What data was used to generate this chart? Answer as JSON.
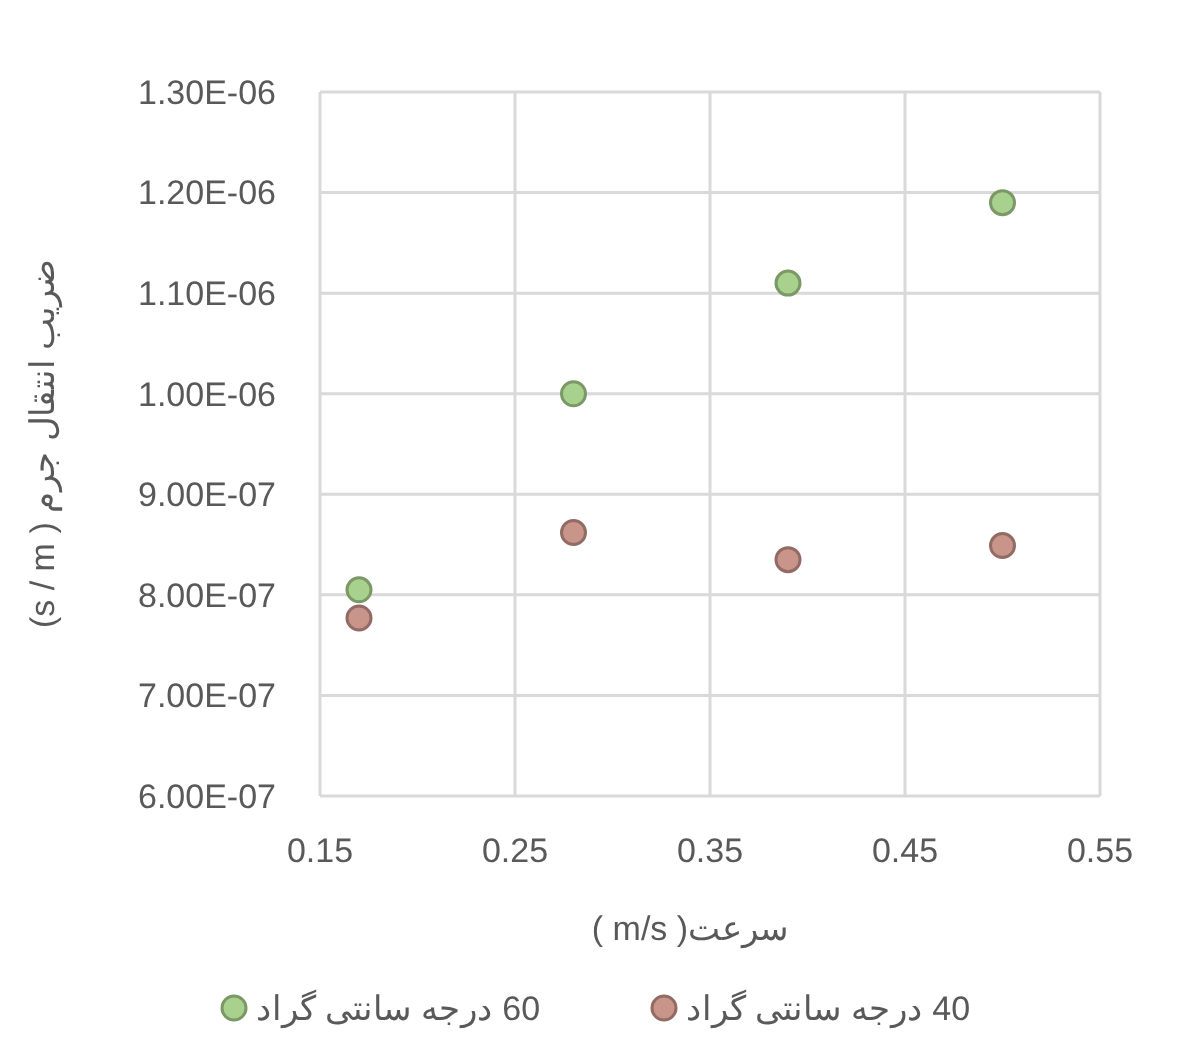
{
  "chart_data": {
    "type": "scatter",
    "xlabel": "سرعت( m/s )",
    "ylabel": "ضریب انتقال جرم ( s / m)",
    "x": [
      0.17,
      0.28,
      0.39,
      0.5
    ],
    "series": [
      {
        "name": "60 درجه سانتی گراد",
        "color": "#a9d18e",
        "values": [
          8.05e-07,
          1e-06,
          1.11e-06,
          1.19e-06
        ]
      },
      {
        "name": "40 درجه سانتی گراد",
        "color": "#c9948a",
        "values": [
          7.77e-07,
          8.62e-07,
          8.35e-07,
          8.49e-07
        ]
      }
    ],
    "xlim": [
      0.15,
      0.55
    ],
    "xticks": [
      0.15,
      0.25,
      0.35,
      0.45,
      0.55
    ],
    "ylim": [
      6e-07,
      1.3e-06
    ],
    "yticks": [
      {
        "value": 6e-07,
        "label": "6.00E-07"
      },
      {
        "value": 7e-07,
        "label": "7.00E-07"
      },
      {
        "value": 8e-07,
        "label": "8.00E-07"
      },
      {
        "value": 9e-07,
        "label": "9.00E-07"
      },
      {
        "value": 1e-06,
        "label": "1.00E-06"
      },
      {
        "value": 1.1e-06,
        "label": "1.10E-06"
      },
      {
        "value": 1.2e-06,
        "label": "1.20E-06"
      },
      {
        "value": 1.3e-06,
        "label": "1.30E-06"
      }
    ],
    "grid": true,
    "legend": "bottom",
    "marker": "circle"
  }
}
